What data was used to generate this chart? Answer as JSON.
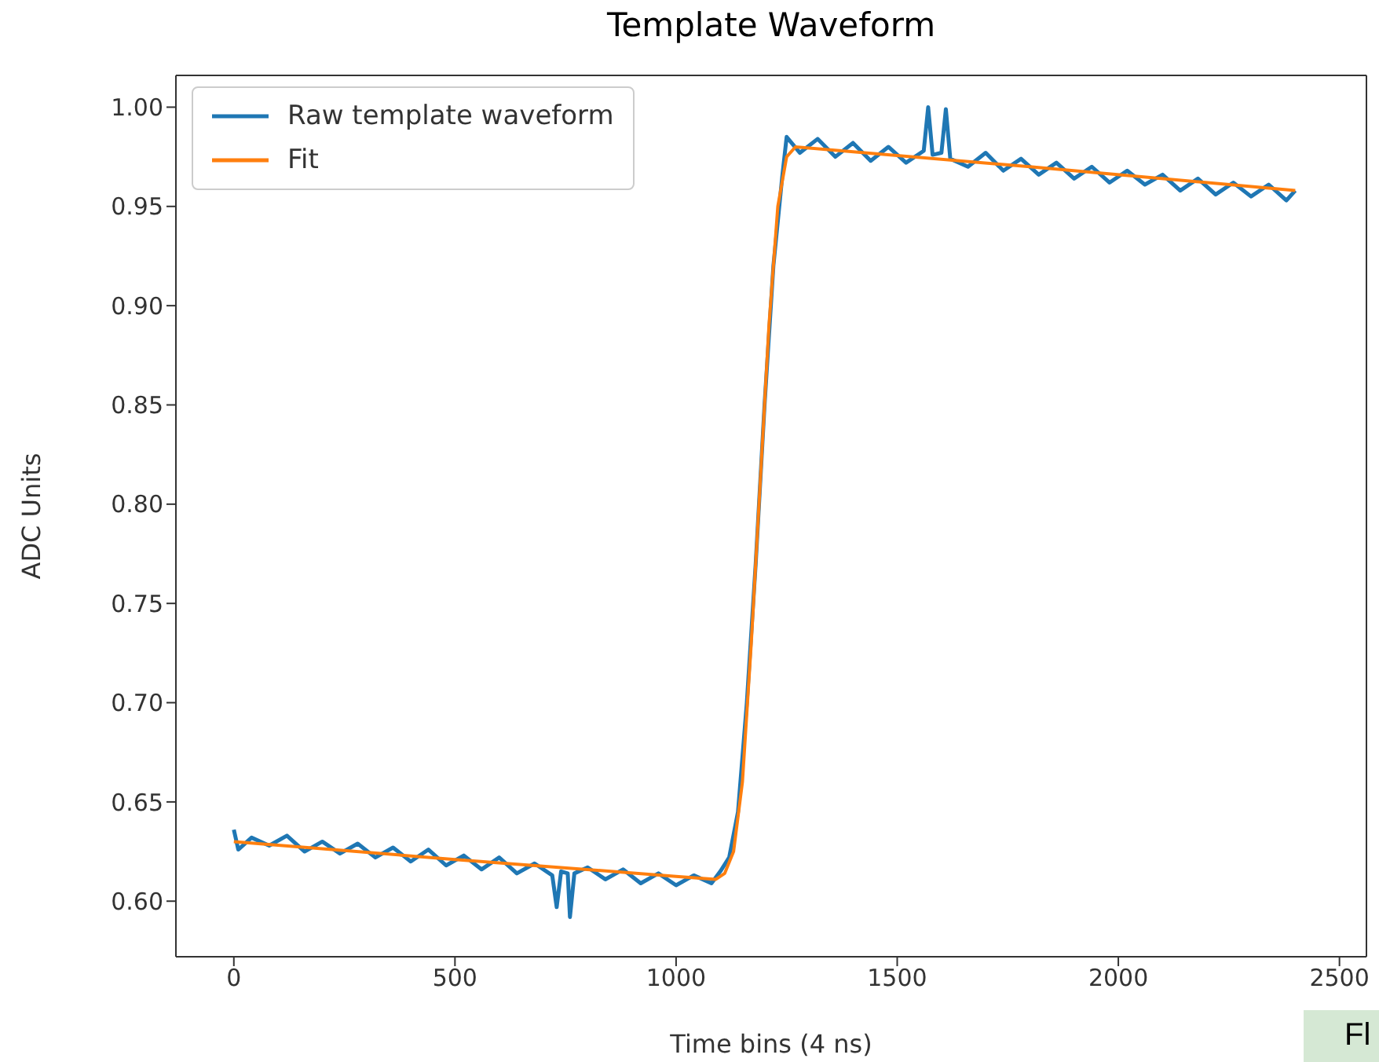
{
  "chart_data": {
    "type": "line",
    "title": "Template Waveform",
    "xlabel": "Time bins (4 ns)",
    "ylabel": "ADC Units",
    "xlim": [
      -131,
      2561
    ],
    "xticks": [
      0,
      500,
      1000,
      1500,
      2000,
      2500
    ],
    "ylim": [
      0.572,
      1.016
    ],
    "yticks": [
      {
        "value": 0.6,
        "label": "0.60"
      },
      {
        "value": 0.65,
        "label": "0.65"
      },
      {
        "value": 0.7,
        "label": "0.70"
      },
      {
        "value": 0.75,
        "label": "0.75"
      },
      {
        "value": 0.8,
        "label": "0.80"
      },
      {
        "value": 0.85,
        "label": "0.85"
      },
      {
        "value": 0.9,
        "label": "0.90"
      },
      {
        "value": 0.95,
        "label": "0.95"
      },
      {
        "value": 1.0,
        "label": "1.00"
      }
    ],
    "grid": false,
    "legend": "top left",
    "marker": "none",
    "line_style": "solid",
    "annotations": [
      "Fl"
    ],
    "series": [
      {
        "name": "Raw template waveform",
        "color": "#1f77b4",
        "x": [
          0,
          10,
          40,
          80,
          120,
          160,
          200,
          240,
          280,
          320,
          360,
          400,
          440,
          480,
          520,
          560,
          600,
          640,
          680,
          720,
          730,
          740,
          755,
          760,
          770,
          800,
          840,
          880,
          920,
          960,
          1000,
          1040,
          1080,
          1100,
          1120,
          1140,
          1160,
          1180,
          1200,
          1220,
          1240,
          1250,
          1280,
          1320,
          1360,
          1400,
          1440,
          1480,
          1520,
          1560,
          1570,
          1580,
          1600,
          1610,
          1620,
          1660,
          1700,
          1740,
          1780,
          1820,
          1860,
          1900,
          1940,
          1980,
          2020,
          2060,
          2100,
          2140,
          2180,
          2220,
          2260,
          2300,
          2340,
          2380,
          2400
        ],
        "values": [
          0.636,
          0.626,
          0.632,
          0.628,
          0.633,
          0.625,
          0.63,
          0.624,
          0.629,
          0.622,
          0.627,
          0.62,
          0.626,
          0.618,
          0.623,
          0.616,
          0.622,
          0.614,
          0.619,
          0.613,
          0.597,
          0.615,
          0.614,
          0.592,
          0.614,
          0.617,
          0.611,
          0.616,
          0.609,
          0.614,
          0.608,
          0.613,
          0.609,
          0.615,
          0.622,
          0.645,
          0.7,
          0.77,
          0.85,
          0.92,
          0.965,
          0.985,
          0.977,
          0.984,
          0.975,
          0.982,
          0.973,
          0.98,
          0.972,
          0.978,
          1.0,
          0.976,
          0.977,
          0.999,
          0.974,
          0.97,
          0.977,
          0.968,
          0.974,
          0.966,
          0.972,
          0.964,
          0.97,
          0.962,
          0.968,
          0.961,
          0.966,
          0.958,
          0.964,
          0.956,
          0.962,
          0.955,
          0.961,
          0.953,
          0.958
        ]
      },
      {
        "name": "Fit",
        "color": "#ff7f0e",
        "x": [
          0,
          500,
          1000,
          1090,
          1110,
          1130,
          1150,
          1170,
          1190,
          1210,
          1230,
          1250,
          1270,
          1800,
          2400
        ],
        "values": [
          0.63,
          0.621,
          0.6125,
          0.611,
          0.614,
          0.625,
          0.66,
          0.73,
          0.81,
          0.89,
          0.95,
          0.975,
          0.98,
          0.97,
          0.958
        ]
      }
    ]
  }
}
